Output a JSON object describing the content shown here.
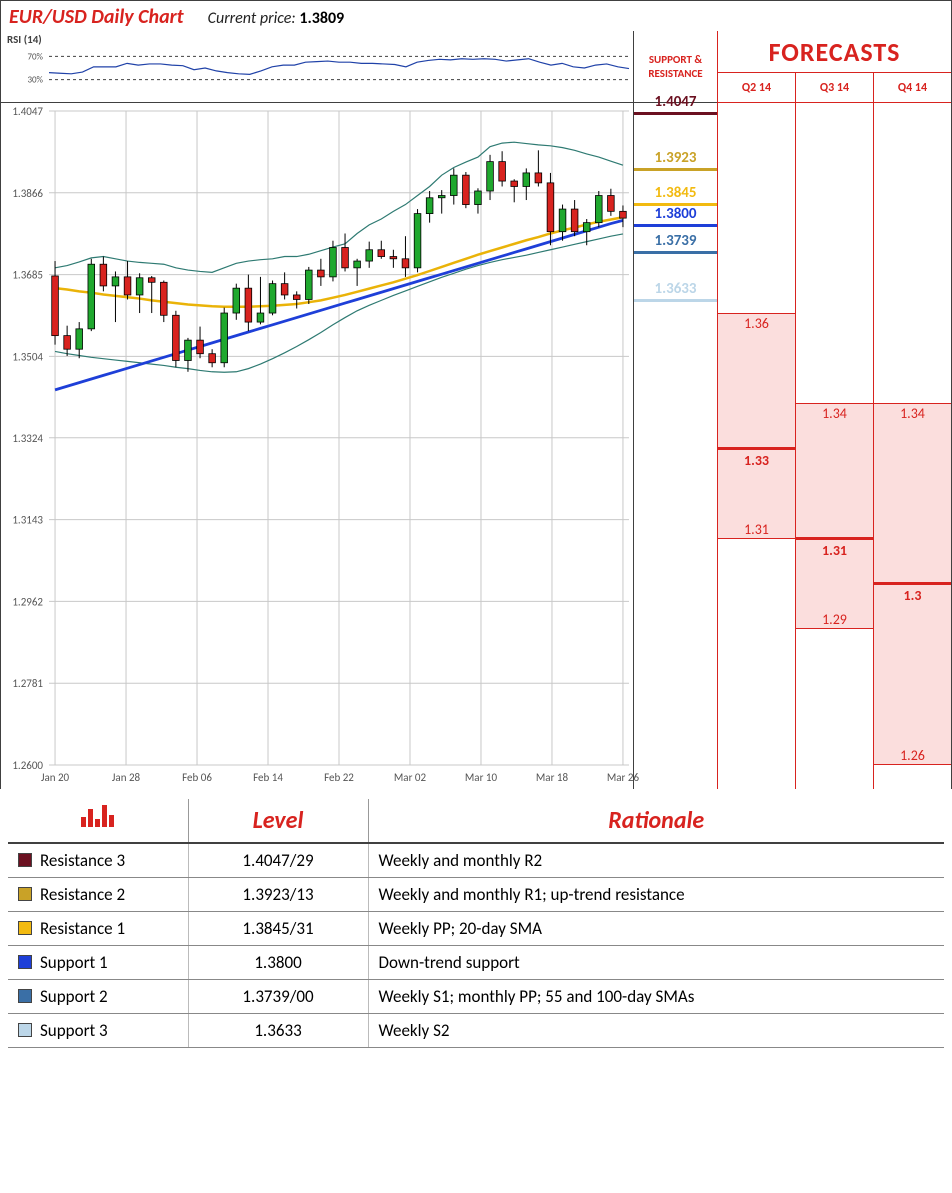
{
  "header": {
    "title": "EUR/USD Daily Chart",
    "current_price_label": "Current price:",
    "current_price": "1.3809"
  },
  "rsi": {
    "label": "RSI (14)",
    "upper": 70,
    "lower": 30,
    "line_color": "#2042a8",
    "band_color": "#404040",
    "values": [
      42,
      41,
      40,
      43,
      52,
      52,
      52,
      58,
      55,
      57,
      57,
      55,
      54,
      47,
      50,
      45,
      42,
      40,
      39,
      45,
      52,
      55,
      55,
      60,
      61,
      62,
      60,
      60,
      58,
      58,
      57,
      56,
      52,
      60,
      63,
      65,
      64,
      66,
      65,
      66,
      65,
      62,
      64,
      66,
      60,
      55,
      58,
      52,
      50,
      55,
      57,
      52,
      49
    ]
  },
  "price_chart": {
    "ymin": 1.26,
    "ymax": 1.4047,
    "ygrid": [
      1.4047,
      1.3866,
      1.3685,
      1.3504,
      1.3324,
      1.3143,
      1.2962,
      1.2781,
      1.26
    ],
    "ylabels": [
      "1.4047",
      "1.3866",
      "1.3685",
      "1.3504",
      "1.3324",
      "1.3143",
      "1.2962",
      "1.2781",
      "1.2600"
    ],
    "xlabels": [
      "Jan 20",
      "Jan 28",
      "Feb 06",
      "Feb 14",
      "Feb 22",
      "Mar 02",
      "Mar 10",
      "Mar 18",
      "Mar 26"
    ],
    "grid_color": "#c8c8c8",
    "candle_up_fill": "#1fa82e",
    "candle_down_fill": "#d8231f",
    "candle_outline": "#000000",
    "bb_color": "#2e7a72",
    "sma20_color": "#eab308",
    "sma50_color": "#1e3fd8",
    "sma5_color": "#bbbbbb",
    "candles": [
      {
        "o": 1.3682,
        "h": 1.3715,
        "l": 1.353,
        "c": 1.355
      },
      {
        "o": 1.355,
        "h": 1.3572,
        "l": 1.3505,
        "c": 1.352
      },
      {
        "o": 1.352,
        "h": 1.358,
        "l": 1.35,
        "c": 1.3565
      },
      {
        "o": 1.3565,
        "h": 1.372,
        "l": 1.356,
        "c": 1.3708
      },
      {
        "o": 1.3708,
        "h": 1.3725,
        "l": 1.3648,
        "c": 1.366
      },
      {
        "o": 1.366,
        "h": 1.3692,
        "l": 1.358,
        "c": 1.368
      },
      {
        "o": 1.368,
        "h": 1.3715,
        "l": 1.363,
        "c": 1.364
      },
      {
        "o": 1.364,
        "h": 1.3688,
        "l": 1.36,
        "c": 1.3678
      },
      {
        "o": 1.3678,
        "h": 1.3682,
        "l": 1.36,
        "c": 1.3668
      },
      {
        "o": 1.3668,
        "h": 1.3672,
        "l": 1.358,
        "c": 1.3595
      },
      {
        "o": 1.3595,
        "h": 1.3605,
        "l": 1.348,
        "c": 1.3495
      },
      {
        "o": 1.3495,
        "h": 1.3545,
        "l": 1.347,
        "c": 1.354
      },
      {
        "o": 1.354,
        "h": 1.357,
        "l": 1.35,
        "c": 1.351
      },
      {
        "o": 1.351,
        "h": 1.352,
        "l": 1.348,
        "c": 1.349
      },
      {
        "o": 1.349,
        "h": 1.3612,
        "l": 1.348,
        "c": 1.36
      },
      {
        "o": 1.36,
        "h": 1.3665,
        "l": 1.3585,
        "c": 1.3655
      },
      {
        "o": 1.3655,
        "h": 1.3685,
        "l": 1.356,
        "c": 1.358
      },
      {
        "o": 1.358,
        "h": 1.368,
        "l": 1.3575,
        "c": 1.36
      },
      {
        "o": 1.36,
        "h": 1.3672,
        "l": 1.3595,
        "c": 1.3665
      },
      {
        "o": 1.3665,
        "h": 1.369,
        "l": 1.363,
        "c": 1.364
      },
      {
        "o": 1.364,
        "h": 1.3648,
        "l": 1.361,
        "c": 1.363
      },
      {
        "o": 1.363,
        "h": 1.3702,
        "l": 1.362,
        "c": 1.3695
      },
      {
        "o": 1.3695,
        "h": 1.372,
        "l": 1.366,
        "c": 1.368
      },
      {
        "o": 1.368,
        "h": 1.376,
        "l": 1.367,
        "c": 1.3745
      },
      {
        "o": 1.3745,
        "h": 1.3776,
        "l": 1.3692,
        "c": 1.37
      },
      {
        "o": 1.37,
        "h": 1.372,
        "l": 1.366,
        "c": 1.3715
      },
      {
        "o": 1.3715,
        "h": 1.3758,
        "l": 1.37,
        "c": 1.374
      },
      {
        "o": 1.374,
        "h": 1.376,
        "l": 1.372,
        "c": 1.3725
      },
      {
        "o": 1.3725,
        "h": 1.374,
        "l": 1.37,
        "c": 1.372
      },
      {
        "o": 1.372,
        "h": 1.377,
        "l": 1.368,
        "c": 1.37
      },
      {
        "o": 1.37,
        "h": 1.383,
        "l": 1.369,
        "c": 1.382
      },
      {
        "o": 1.382,
        "h": 1.387,
        "l": 1.38,
        "c": 1.3855
      },
      {
        "o": 1.3855,
        "h": 1.3872,
        "l": 1.382,
        "c": 1.386
      },
      {
        "o": 1.386,
        "h": 1.392,
        "l": 1.384,
        "c": 1.3905
      },
      {
        "o": 1.3905,
        "h": 1.3912,
        "l": 1.3832,
        "c": 1.384
      },
      {
        "o": 1.384,
        "h": 1.3876,
        "l": 1.382,
        "c": 1.387
      },
      {
        "o": 1.387,
        "h": 1.395,
        "l": 1.385,
        "c": 1.3935
      },
      {
        "o": 1.3935,
        "h": 1.3958,
        "l": 1.388,
        "c": 1.3892
      },
      {
        "o": 1.3892,
        "h": 1.3896,
        "l": 1.3845,
        "c": 1.388
      },
      {
        "o": 1.388,
        "h": 1.392,
        "l": 1.385,
        "c": 1.391
      },
      {
        "o": 1.391,
        "h": 1.396,
        "l": 1.388,
        "c": 1.3888
      },
      {
        "o": 1.3888,
        "h": 1.391,
        "l": 1.375,
        "c": 1.378
      },
      {
        "o": 1.378,
        "h": 1.384,
        "l": 1.376,
        "c": 1.383
      },
      {
        "o": 1.383,
        "h": 1.385,
        "l": 1.377,
        "c": 1.378
      },
      {
        "o": 1.378,
        "h": 1.3808,
        "l": 1.375,
        "c": 1.38
      },
      {
        "o": 1.38,
        "h": 1.387,
        "l": 1.379,
        "c": 1.386
      },
      {
        "o": 1.386,
        "h": 1.3875,
        "l": 1.3815,
        "c": 1.3825
      },
      {
        "o": 1.3825,
        "h": 1.3838,
        "l": 1.379,
        "c": 1.381
      }
    ],
    "sma20": [
      1.3655,
      1.3652,
      1.3648,
      1.3645,
      1.3641,
      1.3638,
      1.3635,
      1.3632,
      1.3628,
      1.3625,
      1.3622,
      1.3619,
      1.3617,
      1.3615,
      1.3614,
      1.3614,
      1.3614,
      1.3615,
      1.3616,
      1.3618,
      1.362,
      1.3624,
      1.3628,
      1.3634,
      1.364,
      1.3647,
      1.3654,
      1.3661,
      1.3668,
      1.3676,
      1.3684,
      1.3693,
      1.3702,
      1.3711,
      1.372,
      1.3729,
      1.3737,
      1.3745,
      1.3753,
      1.3761,
      1.3768,
      1.3776,
      1.3783,
      1.3789,
      1.3796,
      1.3802,
      1.3807,
      1.3812
    ],
    "sma50": [
      1.343,
      1.3438,
      1.3446,
      1.3454,
      1.3462,
      1.347,
      1.3478,
      1.3486,
      1.3494,
      1.3502,
      1.351,
      1.3518,
      1.3526,
      1.3534,
      1.3542,
      1.355,
      1.3558,
      1.3566,
      1.3574,
      1.3582,
      1.359,
      1.3598,
      1.3606,
      1.3614,
      1.3622,
      1.363,
      1.3638,
      1.3646,
      1.3654,
      1.3662,
      1.367,
      1.3678,
      1.3686,
      1.3694,
      1.3702,
      1.371,
      1.3718,
      1.3726,
      1.3734,
      1.3742,
      1.375,
      1.3758,
      1.3766,
      1.3774,
      1.3782,
      1.379,
      1.3798,
      1.3805
    ],
    "bb_upper": [
      1.37,
      1.3705,
      1.3713,
      1.3722,
      1.3725,
      1.372,
      1.3715,
      1.3712,
      1.371,
      1.3708,
      1.37,
      1.3695,
      1.3692,
      1.369,
      1.37,
      1.371,
      1.3715,
      1.3718,
      1.372,
      1.3725,
      1.3725,
      1.373,
      1.3738,
      1.3746,
      1.3753,
      1.3776,
      1.3795,
      1.3808,
      1.3825,
      1.384,
      1.386,
      1.388,
      1.3905,
      1.3922,
      1.3934,
      1.3945,
      1.3968,
      1.3976,
      1.3978,
      1.3975,
      1.3972,
      1.397,
      1.3966,
      1.396,
      1.3952,
      1.3945,
      1.3936,
      1.3927
    ],
    "bb_lower": [
      1.3515,
      1.351,
      1.3506,
      1.3502,
      1.3499,
      1.3496,
      1.3493,
      1.349,
      1.3487,
      1.3484,
      1.348,
      1.3477,
      1.3473,
      1.347,
      1.3469,
      1.347,
      1.3477,
      1.3487,
      1.3499,
      1.3512,
      1.3526,
      1.3541,
      1.3557,
      1.3574,
      1.359,
      1.3605,
      1.3617,
      1.3628,
      1.3639,
      1.3649,
      1.3659,
      1.3669,
      1.3679,
      1.3688,
      1.3697,
      1.3705,
      1.3712,
      1.3718,
      1.3723,
      1.3728,
      1.3734,
      1.374,
      1.3746,
      1.3752,
      1.3758,
      1.3764,
      1.377,
      1.3775
    ]
  },
  "sr": {
    "title": "SUPPORT & RESISTANCE",
    "levels": [
      {
        "value": "1.4047",
        "price": 1.4047,
        "color": "#6b1020"
      },
      {
        "value": "1.3923",
        "price": 1.3923,
        "color": "#c9a227"
      },
      {
        "value": "1.3845",
        "price": 1.3845,
        "color": "#f2ba10"
      },
      {
        "value": "1.3800",
        "price": 1.38,
        "color": "#1e3fd8"
      },
      {
        "value": "1.3739",
        "price": 1.3739,
        "color": "#3a6fa6"
      },
      {
        "value": "1.3633",
        "price": 1.3633,
        "color": "#bcd6e8"
      }
    ]
  },
  "forecasts": {
    "title": "FORECASTS",
    "quarters": [
      "Q2 14",
      "Q3 14",
      "Q4 14"
    ],
    "ranges": [
      {
        "high": 1.36,
        "mid": 1.33,
        "low": 1.31,
        "high_label": "1.36",
        "mid_label": "1.33",
        "low_label": "1.31"
      },
      {
        "high": 1.34,
        "mid": 1.31,
        "low": 1.29,
        "high_label": "1.34",
        "mid_label": "1.31",
        "low_label": "1.29"
      },
      {
        "high": 1.34,
        "mid": 1.3,
        "low": 1.26,
        "high_label": "1.34",
        "mid_label": "1.3",
        "low_label": "1.26"
      }
    ],
    "box_fill": "#fbdedd",
    "border_color": "#d8231f"
  },
  "table": {
    "headers": [
      "",
      "Level",
      "Rationale"
    ],
    "rows": [
      {
        "swatch": "#6b1020",
        "name": "Resistance 3",
        "level": "1.4047/29",
        "rationale": "Weekly and monthly R2"
      },
      {
        "swatch": "#c9a227",
        "name": "Resistance 2",
        "level": "1.3923/13",
        "rationale": "Weekly and monthly R1; up-trend resistance"
      },
      {
        "swatch": "#f2ba10",
        "name": "Resistance 1",
        "level": "1.3845/31",
        "rationale": "Weekly PP; 20-day SMA"
      },
      {
        "swatch": "#1e3fd8",
        "name": "Support 1",
        "level": "1.3800",
        "rationale": "Down-trend support"
      },
      {
        "swatch": "#3a6fa6",
        "name": "Support 2",
        "level": "1.3739/00",
        "rationale": "Weekly S1; monthly PP; 55 and 100-day SMAs"
      },
      {
        "swatch": "#bcd6e8",
        "name": "Support 3",
        "level": "1.3633",
        "rationale": "Weekly S2"
      }
    ]
  },
  "layout": {
    "chart_left_pad": 48,
    "chart_right_pad": 4,
    "chart_top_pad": 8,
    "chart_bottom_pad": 24,
    "rsi_left_pad": 48,
    "rsi_right_pad": 4
  }
}
